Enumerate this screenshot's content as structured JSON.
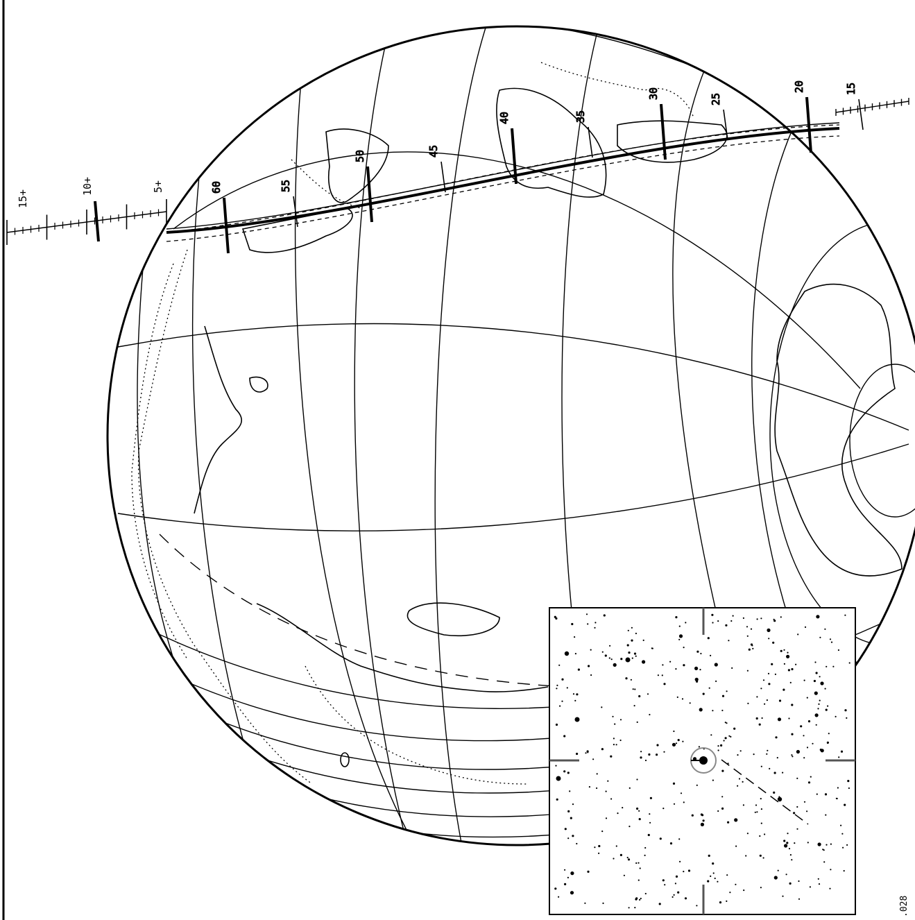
{
  "path_labels": [
    "60",
    "55",
    "50",
    "45",
    "40",
    "35",
    "30",
    "25",
    "20",
    "15"
  ],
  "scale_labels": [
    "15+",
    "10+",
    "5+"
  ],
  "corner_label": ".028",
  "colors": {
    "ink": "#000000",
    "paper": "#ffffff",
    "grey": "#808080"
  }
}
